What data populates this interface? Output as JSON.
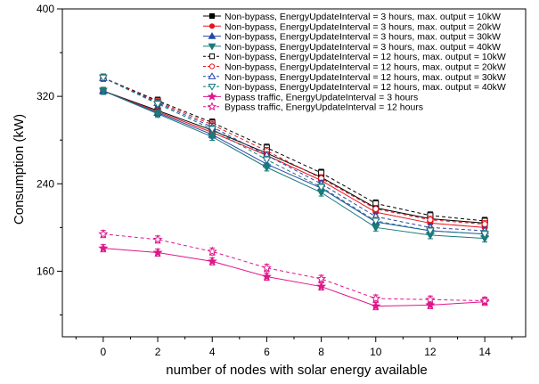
{
  "chart_data": {
    "type": "line",
    "xlabel": "number of nodes with solar energy available",
    "ylabel": "Consumption (kW)",
    "xlim": [
      -1.5,
      15.5
    ],
    "ylim": [
      100,
      400
    ],
    "x_ticks": [
      0,
      2,
      4,
      6,
      8,
      10,
      12,
      14
    ],
    "y_ticks": [
      160,
      240,
      320,
      400
    ],
    "grid": false,
    "legend_position": "top-right",
    "x": [
      0,
      2,
      4,
      6,
      8,
      10,
      12,
      14
    ],
    "series": [
      {
        "name": "Non-bypass, EnergyUpdateInterval = 3 hours, max. output = 10kW",
        "color": "#000000",
        "dash": "solid",
        "marker": "square",
        "filled": true,
        "values": [
          325,
          307,
          289,
          268,
          246,
          218,
          208,
          204
        ]
      },
      {
        "name": "Non-bypass, EnergyUpdateInterval = 3 hours, max. output = 20kW",
        "color": "#e8141c",
        "dash": "solid",
        "marker": "circle",
        "filled": true,
        "values": [
          325,
          306,
          287,
          266,
          243,
          214,
          204,
          200
        ]
      },
      {
        "name": "Non-bypass, EnergyUpdateInterval = 3 hours, max. output = 30kW",
        "color": "#2747a8",
        "dash": "solid",
        "marker": "triangle-up",
        "filled": true,
        "values": [
          325,
          305,
          285,
          258,
          236,
          205,
          197,
          194
        ]
      },
      {
        "name": "Non-bypass, EnergyUpdateInterval = 3 hours, max. output = 40kW",
        "color": "#1b7a7a",
        "dash": "solid",
        "marker": "triangle-down",
        "filled": true,
        "values": [
          325,
          304,
          283,
          255,
          232,
          200,
          193,
          190
        ]
      },
      {
        "name": "Non-bypass, EnergyUpdateInterval = 12 hours, max. output = 10kW",
        "color": "#000000",
        "dash": "dashed",
        "marker": "square",
        "filled": false,
        "values": [
          337,
          316,
          296,
          273,
          250,
          222,
          211,
          206
        ]
      },
      {
        "name": "Non-bypass, EnergyUpdateInterval = 12 hours,  max. output = 20kW",
        "color": "#e8141c",
        "dash": "dashed",
        "marker": "circle",
        "filled": false,
        "values": [
          337,
          315,
          294,
          270,
          245,
          217,
          207,
          203
        ]
      },
      {
        "name": "Non-bypass,  EnergyUpdateInterval = 12 hours, max. output = 30kW",
        "color": "#2747a8",
        "dash": "dashed",
        "marker": "triangle-up",
        "filled": false,
        "values": [
          337,
          314,
          292,
          266,
          240,
          210,
          200,
          197
        ]
      },
      {
        "name": "Non-bypass, EnergyUpdateInterval = 12 hours, max. output = 40kW",
        "color": "#1b7a7a",
        "dash": "dashed",
        "marker": "triangle-down",
        "filled": false,
        "values": [
          337,
          313,
          290,
          262,
          237,
          206,
          197,
          194
        ]
      },
      {
        "name": "Bypass traffic, EnergyUpdateInterval = 3 hours",
        "color": "#e0168c",
        "dash": "solid",
        "marker": "star",
        "filled": true,
        "values": [
          181,
          177,
          169,
          155,
          146,
          128,
          129,
          132
        ]
      },
      {
        "name": "Bypass traffic, EnergyUpdateInterval = 12 hours",
        "color": "#e0168c",
        "dash": "dashed",
        "marker": "star",
        "filled": false,
        "values": [
          194,
          189,
          178,
          163,
          153,
          135,
          134,
          133
        ]
      }
    ]
  }
}
